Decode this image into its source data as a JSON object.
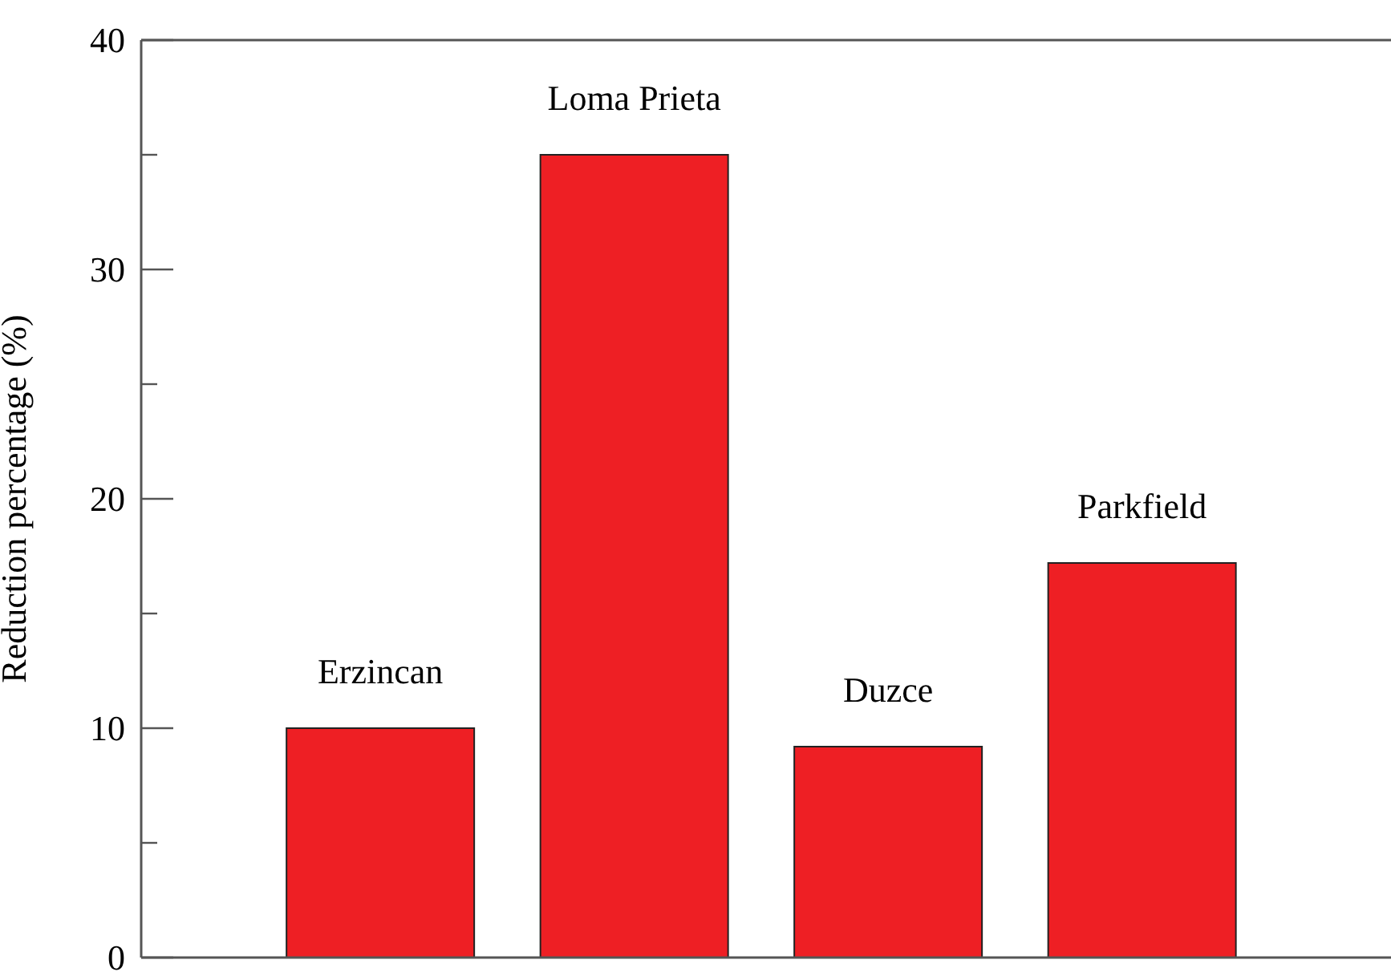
{
  "chart_data": {
    "type": "bar",
    "ylabel": "Reduction percentage (%)",
    "categories": [
      "Erzincan",
      "Loma Prieta",
      "Duzce",
      "Parkfield"
    ],
    "values": [
      10,
      35,
      9.2,
      17.2
    ],
    "color": "#ee1f24",
    "ylim": [
      0,
      40
    ],
    "yticks": [
      0,
      {
        "value": 5,
        "label": null
      },
      10,
      {
        "value": 15,
        "label": null
      },
      20,
      {
        "value": 25,
        "label": null
      },
      30,
      {
        "value": 35,
        "label": null
      },
      40
    ],
    "tick_labels": "y",
    "grid": false
  }
}
